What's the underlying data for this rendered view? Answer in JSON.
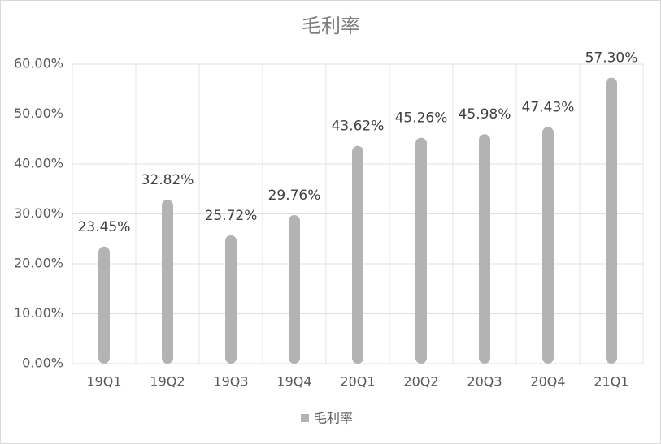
{
  "chart_data": {
    "type": "bar",
    "title": "毛利率",
    "categories": [
      "19Q1",
      "19Q2",
      "19Q3",
      "19Q4",
      "20Q1",
      "20Q2",
      "20Q3",
      "20Q4",
      "21Q1"
    ],
    "series": [
      {
        "name": "毛利率",
        "color": "#b3b3b3",
        "values": [
          23.45,
          32.82,
          25.72,
          29.76,
          43.62,
          45.26,
          45.98,
          47.43,
          57.3
        ],
        "value_labels": [
          "23.45%",
          "32.82%",
          "25.72%",
          "29.76%",
          "43.62%",
          "45.26%",
          "45.98%",
          "47.43%",
          "57.30%"
        ]
      }
    ],
    "ylim": [
      0,
      60
    ],
    "yticks": [
      {
        "value": 0,
        "label": "0.00%"
      },
      {
        "value": 10,
        "label": "10.00%"
      },
      {
        "value": 20,
        "label": "20.00%"
      },
      {
        "value": 30,
        "label": "30.00%"
      },
      {
        "value": 40,
        "label": "40.00%"
      },
      {
        "value": 50,
        "label": "50.00%"
      },
      {
        "value": 60,
        "label": "60.00%"
      }
    ],
    "grid": true,
    "legend": "bottom"
  }
}
